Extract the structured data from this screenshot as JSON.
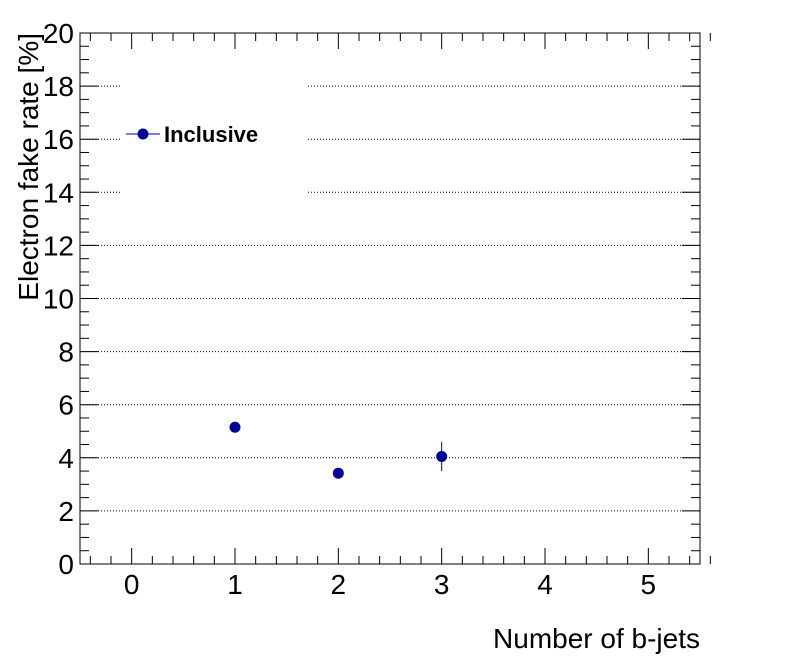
{
  "chart_data": {
    "type": "scatter",
    "xlabel": "Number of b-jets",
    "ylabel": "Electron fake rate [%]",
    "xlim": [
      -0.5,
      5.5
    ],
    "ylim": [
      0,
      20
    ],
    "x_ticks": [
      "0",
      "1",
      "2",
      "3",
      "4",
      "5"
    ],
    "y_ticks": [
      "0",
      "2",
      "4",
      "6",
      "8",
      "10",
      "12",
      "14",
      "16",
      "18",
      "20"
    ],
    "grid": "horizontal-dotted",
    "legend_placement": "top-left",
    "series": [
      {
        "name": "Inclusive",
        "color": "#000099",
        "points": [
          {
            "x": 1,
            "y": 5.15,
            "err": 0.1
          },
          {
            "x": 2,
            "y": 3.42,
            "err": 0.1
          },
          {
            "x": 3,
            "y": 4.05,
            "err": 0.55
          }
        ]
      }
    ]
  }
}
